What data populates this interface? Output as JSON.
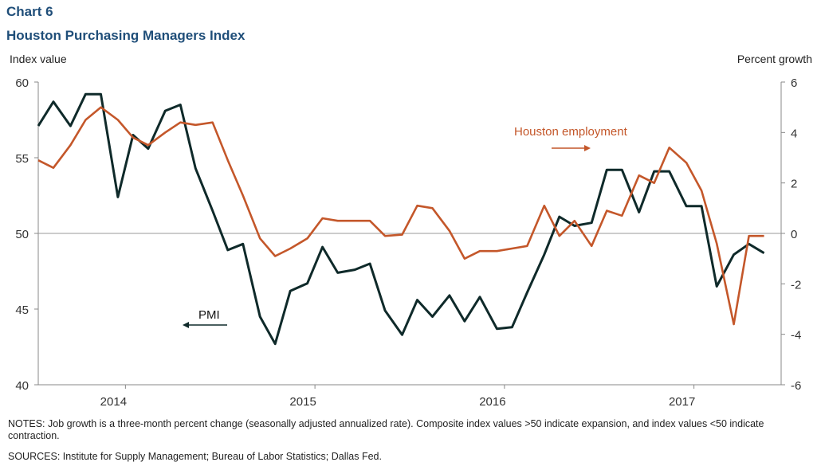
{
  "header": {
    "chart_number": "Chart 6",
    "title": "Houston Purchasing Managers Index"
  },
  "axes": {
    "left_title": "Index value",
    "right_title": "Percent growth"
  },
  "annotations": {
    "employment_label": "Houston  employment",
    "pmi_label": "PMI"
  },
  "footer": {
    "notes": "NOTES:  Job growth is a three-month percent change (seasonally adjusted annualized rate). Composite index values >50 indicate expansion, and index values <50 indicate contraction.",
    "sources": "SOURCES:  Institute for Supply Management;  Bureau of Labor Statistics;  Dallas Fed."
  },
  "colors": {
    "pmi": "#0f2a2a",
    "employment": "#c4572a",
    "axis": "#888888",
    "zero_line": "#999999"
  },
  "chart_data": {
    "type": "line",
    "x_ticks": [
      "2014",
      "2015",
      "2016",
      "2017"
    ],
    "x_tick_positions": [
      2014.0,
      2015.0,
      2016.0,
      2017.0
    ],
    "xlim": [
      2013.54,
      2017.46
    ],
    "left_axis": {
      "ylim": [
        40,
        60
      ],
      "ticks": [
        40,
        45,
        50,
        55,
        60
      ]
    },
    "right_axis": {
      "ylim": [
        -6,
        6
      ],
      "ticks": [
        -6,
        -4,
        -2,
        0,
        2,
        4,
        6
      ]
    },
    "series": [
      {
        "name": "PMI",
        "axis": "left",
        "x": [
          2013.54,
          2013.62,
          2013.71,
          2013.79,
          2013.87,
          2013.96,
          2014.04,
          2014.12,
          2014.21,
          2014.29,
          2014.37,
          2014.46,
          2014.54,
          2014.62,
          2014.71,
          2014.79,
          2014.87,
          2014.96,
          2015.04,
          2015.12,
          2015.21,
          2015.29,
          2015.37,
          2015.46,
          2015.54,
          2015.62,
          2015.71,
          2015.79,
          2015.87,
          2015.96,
          2016.04,
          2016.12,
          2016.21,
          2016.29,
          2016.37,
          2016.46,
          2016.54,
          2016.62,
          2016.71,
          2016.79,
          2016.87,
          2016.96,
          2017.04,
          2017.12,
          2017.21,
          2017.29,
          2017.37
        ],
        "values": [
          57.1,
          58.7,
          57.1,
          59.2,
          59.2,
          52.4,
          56.5,
          55.6,
          58.1,
          58.5,
          54.3,
          51.5,
          48.9,
          49.3,
          44.5,
          42.7,
          46.2,
          46.7,
          49.1,
          47.4,
          47.6,
          48.0,
          44.9,
          43.3,
          45.6,
          44.5,
          45.9,
          44.2,
          45.8,
          43.7,
          43.8,
          46.1,
          48.6,
          51.1,
          50.5,
          50.7,
          54.2,
          54.2,
          51.4,
          54.1,
          54.1,
          51.8,
          51.8,
          46.5,
          48.6,
          49.3,
          48.7
        ]
      },
      {
        "name": "Houston employment",
        "axis": "right",
        "x": [
          2013.54,
          2013.62,
          2013.71,
          2013.79,
          2013.87,
          2013.96,
          2014.04,
          2014.12,
          2014.21,
          2014.29,
          2014.37,
          2014.46,
          2014.54,
          2014.62,
          2014.71,
          2014.79,
          2014.87,
          2014.96,
          2015.04,
          2015.12,
          2015.21,
          2015.29,
          2015.37,
          2015.46,
          2015.54,
          2015.62,
          2015.71,
          2015.79,
          2015.87,
          2015.96,
          2016.04,
          2016.12,
          2016.21,
          2016.29,
          2016.37,
          2016.46,
          2016.54,
          2016.62,
          2016.71,
          2016.79,
          2016.87,
          2016.96,
          2017.04,
          2017.12,
          2017.21,
          2017.29,
          2017.37
        ],
        "values": [
          2.9,
          2.6,
          3.5,
          4.5,
          5.0,
          4.5,
          3.8,
          3.5,
          4.0,
          4.4,
          4.3,
          4.4,
          2.9,
          1.5,
          -0.2,
          -0.9,
          -0.6,
          -0.2,
          0.6,
          0.5,
          0.5,
          0.5,
          -0.1,
          -0.05,
          1.1,
          1.0,
          0.1,
          -1.0,
          -0.7,
          -0.7,
          -0.6,
          -0.5,
          1.1,
          -0.1,
          0.5,
          -0.5,
          0.9,
          0.7,
          2.3,
          2.0,
          3.4,
          2.8,
          1.7,
          -0.4,
          -3.6,
          -0.1,
          -0.1
        ]
      }
    ]
  }
}
